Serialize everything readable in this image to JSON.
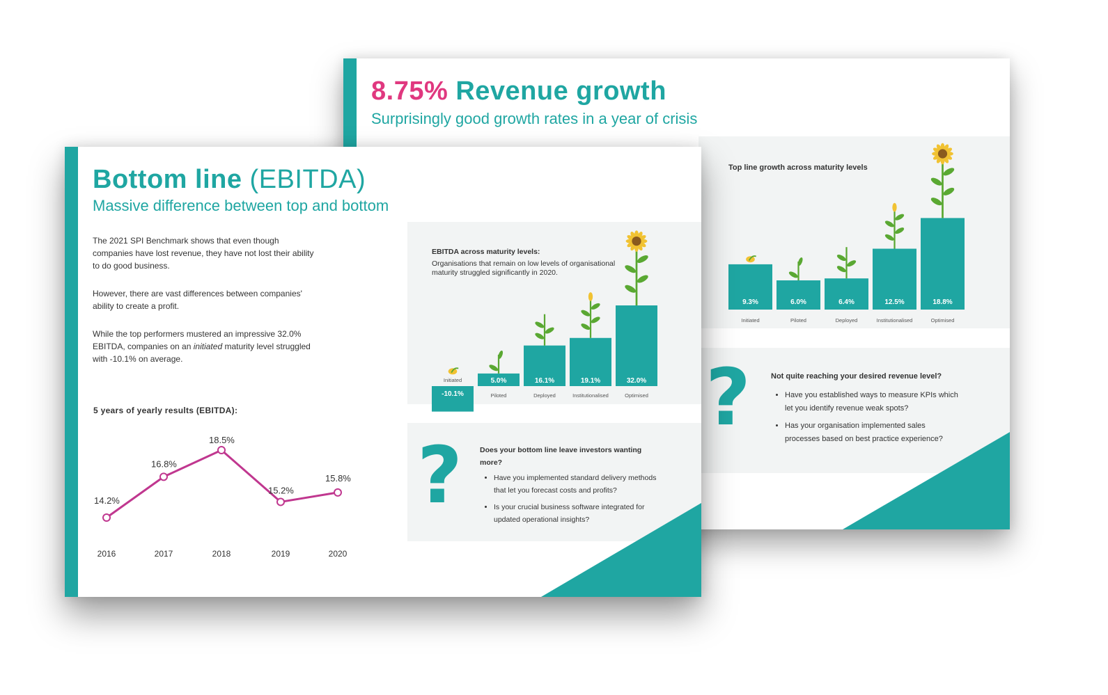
{
  "colors": {
    "teal": "#1fa6a2",
    "pink": "#e0387f",
    "magenta": "#c0378f",
    "panel": "#f2f4f4",
    "text": "#333333"
  },
  "revenue_page": {
    "title_value": "8.75%",
    "title_text": "Revenue growth",
    "subtitle": "Surprisingly good growth rates in a year of crisis",
    "chart_title": "Top line growth across maturity levels",
    "question_title": "Not quite reaching your desired revenue level?",
    "questions": [
      "Have you established ways to measure KPIs which let you identify revenue weak spots?",
      "Has your organisation implemented sales processes based on best practice experience?"
    ]
  },
  "ebitda_page": {
    "title_main": "Bottom line",
    "title_paren": "(EBITDA)",
    "subtitle": "Massive difference between top and bottom",
    "para1": "The 2021 SPI Benchmark shows that even though companies have lost revenue, they have not lost their ability to do good business.",
    "para2": "However, there are vast differences between companies' ability to create a profit.",
    "para3_a": "While the top performers mustered an impressive 32.0% EBITDA, companies on an ",
    "para3_em": "initiated",
    "para3_b": " maturity level struggled with -10.1% on average.",
    "line_title": "5 years of yearly results (EBITDA):",
    "chart_title": "EBITDA across maturity levels:",
    "chart_subtitle": "Organisations that remain on low levels of organisational maturity struggled significantly in 2020.",
    "question_title": "Does your bottom line leave investors wanting more?",
    "questions": [
      "Have you implemented standard delivery methods that let you forecast costs and profits?",
      "Is your crucial business software integrated for updated operational insights?"
    ]
  },
  "chart_data": [
    {
      "type": "bar",
      "title": "Top line growth across maturity levels",
      "categories": [
        "Initiated",
        "Piloted",
        "Deployed",
        "Institutionalised",
        "Optimised"
      ],
      "values": [
        9.3,
        6.0,
        6.4,
        12.5,
        18.8
      ],
      "labels": [
        "9.3%",
        "6.0%",
        "6.4%",
        "12.5%",
        "18.8%"
      ]
    },
    {
      "type": "bar",
      "title": "EBITDA across maturity levels:",
      "categories": [
        "Initiated",
        "Piloted",
        "Deployed",
        "Institutionalised",
        "Optimised"
      ],
      "values": [
        -10.1,
        5.0,
        16.1,
        19.1,
        32.0
      ],
      "labels": [
        "-10.1%",
        "5.0%",
        "16.1%",
        "19.1%",
        "32.0%"
      ]
    },
    {
      "type": "line",
      "title": "5 years of yearly results (EBITDA):",
      "x": [
        "2016",
        "2017",
        "2018",
        "2019",
        "2020"
      ],
      "values": [
        14.2,
        16.8,
        18.5,
        15.2,
        15.8
      ],
      "labels": [
        "14.2%",
        "16.8%",
        "18.5%",
        "15.2%",
        "15.8%"
      ]
    }
  ]
}
